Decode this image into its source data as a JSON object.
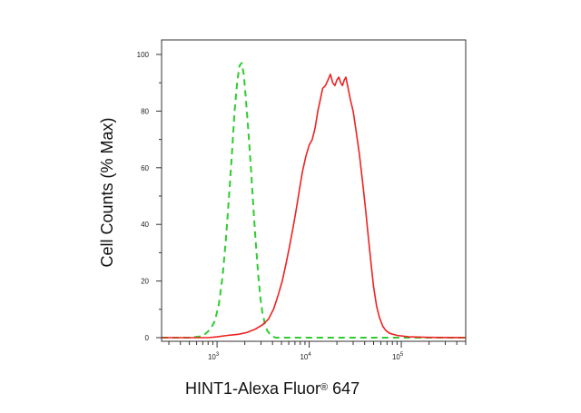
{
  "chart_data": {
    "type": "line",
    "xlabel": "HINT1-Alexa Fluor",
    "xlabel_mark": "®",
    "xlabel_suffix": " 647",
    "ylabel": "Cell Counts (% Max)",
    "x_scale": "log",
    "xlim": [
      250,
      500000
    ],
    "ylim": [
      0,
      100
    ],
    "yticks": [
      0,
      20,
      40,
      60,
      80,
      100
    ],
    "xticks_major": [
      {
        "value": 1000,
        "base": "10",
        "exp": "3"
      },
      {
        "value": 10000,
        "base": "10",
        "exp": "4"
      },
      {
        "value": 100000,
        "base": "10",
        "exp": "5"
      }
    ],
    "grid": false,
    "legend": "none",
    "series": [
      {
        "color": "#2ecc2e",
        "dash": true,
        "points": [
          [
            250,
            0
          ],
          [
            500,
            0
          ],
          [
            700,
            0.5
          ],
          [
            850,
            3
          ],
          [
            950,
            6
          ],
          [
            1050,
            12
          ],
          [
            1150,
            22
          ],
          [
            1250,
            35
          ],
          [
            1350,
            50
          ],
          [
            1450,
            65
          ],
          [
            1550,
            80
          ],
          [
            1650,
            90
          ],
          [
            1750,
            96
          ],
          [
            1850,
            97
          ],
          [
            1950,
            93
          ],
          [
            2050,
            85
          ],
          [
            2200,
            72
          ],
          [
            2350,
            58
          ],
          [
            2500,
            44
          ],
          [
            2650,
            32
          ],
          [
            2800,
            22
          ],
          [
            2950,
            14
          ],
          [
            3100,
            9
          ],
          [
            3300,
            5
          ],
          [
            3500,
            2.5
          ],
          [
            3800,
            1
          ],
          [
            4300,
            0
          ],
          [
            10000,
            0
          ],
          [
            100000,
            0
          ],
          [
            500000,
            0
          ]
        ]
      },
      {
        "color": "#ee2222",
        "dash": false,
        "points": [
          [
            250,
            0
          ],
          [
            800,
            0
          ],
          [
            1000,
            0.3
          ],
          [
            1300,
            0.8
          ],
          [
            1700,
            1.2
          ],
          [
            2100,
            1.8
          ],
          [
            2600,
            3
          ],
          [
            3100,
            4.5
          ],
          [
            3600,
            6.5
          ],
          [
            4100,
            10
          ],
          [
            4600,
            15
          ],
          [
            5100,
            20
          ],
          [
            5600,
            26
          ],
          [
            6100,
            32
          ],
          [
            6700,
            39
          ],
          [
            7300,
            46
          ],
          [
            7900,
            53
          ],
          [
            8500,
            59
          ],
          [
            9200,
            64
          ],
          [
            10000,
            68
          ],
          [
            10800,
            70
          ],
          [
            11600,
            74
          ],
          [
            12400,
            80
          ],
          [
            13200,
            84
          ],
          [
            14000,
            88
          ],
          [
            15000,
            89
          ],
          [
            16000,
            91
          ],
          [
            17000,
            93
          ],
          [
            18000,
            90
          ],
          [
            19000,
            89
          ],
          [
            20000,
            91
          ],
          [
            21000,
            92
          ],
          [
            22000,
            90
          ],
          [
            23000,
            89
          ],
          [
            24000,
            91
          ],
          [
            25000,
            92
          ],
          [
            26500,
            88
          ],
          [
            28000,
            84
          ],
          [
            30000,
            80
          ],
          [
            32000,
            74
          ],
          [
            35000,
            65
          ],
          [
            38000,
            55
          ],
          [
            41000,
            45
          ],
          [
            44000,
            35
          ],
          [
            47000,
            26
          ],
          [
            50000,
            18
          ],
          [
            54000,
            11
          ],
          [
            58000,
            7
          ],
          [
            63000,
            4
          ],
          [
            68000,
            2.5
          ],
          [
            75000,
            1.5
          ],
          [
            90000,
            0.8
          ],
          [
            120000,
            0.3
          ],
          [
            200000,
            0.1
          ],
          [
            500000,
            0
          ]
        ]
      }
    ]
  }
}
